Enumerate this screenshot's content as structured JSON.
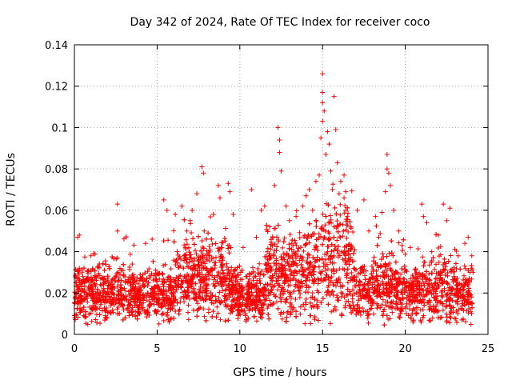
{
  "chart_data": {
    "type": "scatter",
    "title": "Day 342 of 2024, Rate Of TEC Index for receiver coco",
    "xlabel": "GPS time / hours",
    "ylabel": "ROTI / TECUs",
    "xlim": [
      0,
      25
    ],
    "ylim": [
      0,
      0.14
    ],
    "xticks": [
      0,
      5,
      10,
      15,
      20,
      25
    ],
    "yticks": [
      0,
      0.02,
      0.04,
      0.06,
      0.08,
      0.1,
      0.12,
      0.14
    ],
    "xtick_labels": [
      "0",
      "5",
      "10",
      "15",
      "20",
      "25"
    ],
    "ytick_labels": [
      "0",
      "0.02",
      "0.04",
      "0.06",
      "0.08",
      "0.1",
      "0.12",
      "0.14"
    ],
    "grid": true,
    "marker": "+",
    "color": "#ff0000",
    "series": [
      {
        "name": "ROTI",
        "points": [
          [
            0.2,
            0.047
          ],
          [
            0.3,
            0.048
          ],
          [
            0.3,
            0.032
          ],
          [
            1.0,
            0.038
          ],
          [
            2.6,
            0.063
          ],
          [
            2.6,
            0.05
          ],
          [
            2.6,
            0.037
          ],
          [
            3.5,
            0.034
          ],
          [
            4.3,
            0.044
          ],
          [
            4.7,
            0.046
          ],
          [
            5.4,
            0.065
          ],
          [
            5.6,
            0.06
          ],
          [
            6.1,
            0.058
          ],
          [
            6.5,
            0.062
          ],
          [
            6.8,
            0.05
          ],
          [
            7.0,
            0.055
          ],
          [
            7.4,
            0.068
          ],
          [
            7.7,
            0.081
          ],
          [
            7.8,
            0.078
          ],
          [
            8.4,
            0.058
          ],
          [
            8.7,
            0.072
          ],
          [
            8.8,
            0.066
          ],
          [
            9.3,
            0.073
          ],
          [
            9.4,
            0.069
          ],
          [
            9.6,
            0.058
          ],
          [
            10.2,
            0.042
          ],
          [
            10.7,
            0.07
          ],
          [
            11.0,
            0.047
          ],
          [
            11.3,
            0.06
          ],
          [
            11.5,
            0.062
          ],
          [
            11.8,
            0.052
          ],
          [
            12.1,
            0.072
          ],
          [
            12.3,
            0.1
          ],
          [
            12.4,
            0.094
          ],
          [
            12.4,
            0.088
          ],
          [
            12.5,
            0.079
          ],
          [
            12.8,
            0.062
          ],
          [
            13.0,
            0.055
          ],
          [
            13.4,
            0.057
          ],
          [
            13.8,
            0.062
          ],
          [
            14.0,
            0.067
          ],
          [
            14.2,
            0.07
          ],
          [
            14.4,
            0.06
          ],
          [
            14.6,
            0.074
          ],
          [
            14.8,
            0.077
          ],
          [
            14.9,
            0.095
          ],
          [
            15.0,
            0.126
          ],
          [
            15.0,
            0.117
          ],
          [
            15.0,
            0.112
          ],
          [
            15.1,
            0.108
          ],
          [
            15.0,
            0.103
          ],
          [
            15.2,
            0.087
          ],
          [
            15.3,
            0.098
          ],
          [
            15.4,
            0.092
          ],
          [
            15.5,
            0.079
          ],
          [
            15.6,
            0.07
          ],
          [
            15.7,
            0.115
          ],
          [
            15.8,
            0.099
          ],
          [
            15.9,
            0.083
          ],
          [
            16.0,
            0.068
          ],
          [
            16.1,
            0.074
          ],
          [
            16.3,
            0.077
          ],
          [
            16.3,
            0.066
          ],
          [
            16.4,
            0.069
          ],
          [
            16.4,
            0.06
          ],
          [
            16.5,
            0.057
          ],
          [
            16.7,
            0.052
          ],
          [
            17.1,
            0.06
          ],
          [
            17.5,
            0.065
          ],
          [
            17.8,
            0.05
          ],
          [
            18.2,
            0.057
          ],
          [
            18.4,
            0.047
          ],
          [
            18.6,
            0.059
          ],
          [
            18.8,
            0.069
          ],
          [
            18.9,
            0.087
          ],
          [
            18.9,
            0.08
          ],
          [
            19.0,
            0.078
          ],
          [
            19.1,
            0.072
          ],
          [
            19.3,
            0.06
          ],
          [
            19.6,
            0.05
          ],
          [
            19.8,
            0.043
          ],
          [
            20.3,
            0.042
          ],
          [
            21.0,
            0.063
          ],
          [
            21.1,
            0.057
          ],
          [
            21.3,
            0.054
          ],
          [
            21.6,
            0.04
          ],
          [
            22.0,
            0.048
          ],
          [
            22.3,
            0.063
          ],
          [
            22.7,
            0.061
          ],
          [
            22.5,
            0.055
          ],
          [
            23.2,
            0.038
          ],
          [
            23.6,
            0.044
          ],
          [
            23.8,
            0.047
          ],
          [
            24.0,
            0.032
          ],
          [
            24.1,
            0.03
          ]
        ]
      }
    ]
  }
}
